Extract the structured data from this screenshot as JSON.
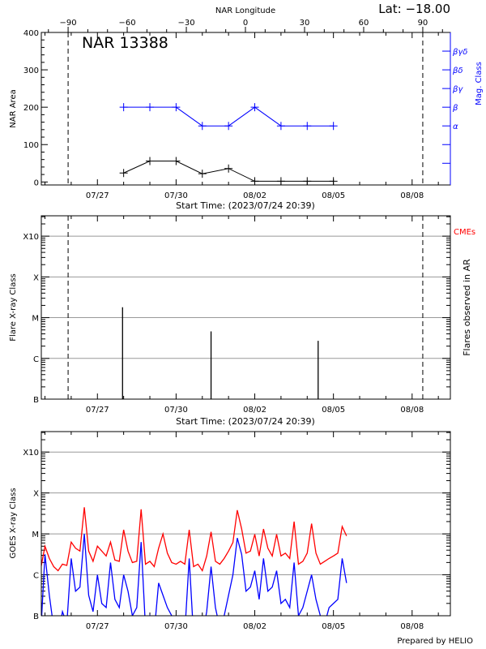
{
  "header": {
    "latitude": "Lat: −18.00",
    "credit": "Prepared by HELIO"
  },
  "colors": {
    "axis": "#000000",
    "mag_class": "#0000ff",
    "goes_long": "#ff0000",
    "goes_short": "#0000ff",
    "cme": "#ff0000",
    "grid": "#999999"
  },
  "chart_data": [
    {
      "type": "line",
      "title": "NAR 13388",
      "xlabel": "Start Time: (2023/07/24 20:39)",
      "ylabel": "NAR Area",
      "y2label": "Mag. Class",
      "top_xlabel": "NAR Longitude",
      "xlim": [
        "2023/07/24 20:39",
        "2023/08/09 11:00"
      ],
      "top_xlim": [
        -103.6,
        104
      ],
      "top_ticks": [
        -90,
        -60,
        -30,
        0,
        30,
        60,
        90
      ],
      "ylim": [
        -8,
        400
      ],
      "yticks": [
        0,
        100,
        200,
        300,
        400
      ],
      "xticks": [
        "07/27",
        "07/30",
        "08/02",
        "08/05",
        "08/08"
      ],
      "limb_longitudes": [
        -90,
        90
      ],
      "mag_class_axis": [
        {
          "label": "α",
          "value": 150
        },
        {
          "label": "β",
          "value": 200
        },
        {
          "label": "βγ",
          "value": 250
        },
        {
          "label": "βδ",
          "value": 300
        },
        {
          "label": "βγδ",
          "value": 350
        }
      ],
      "dates": [
        "07/28",
        "07/29",
        "07/30",
        "07/31",
        "08/01",
        "08/02",
        "08/03",
        "08/04",
        "08/05"
      ],
      "area": [
        24,
        56,
        56,
        22,
        36,
        2,
        2,
        2,
        2
      ],
      "mag_class": [
        "β",
        "β",
        "β",
        "α",
        "α",
        "β",
        "α",
        "α",
        "α"
      ]
    },
    {
      "type": "bar",
      "xlabel": "Start Time: (2023/07/24 20:39)",
      "ylabel": "Flare X-ray Class",
      "y2label": "Flares observed in AR",
      "cme_label": "CMEs",
      "scale": "log",
      "ylim": [
        -7,
        -2.5
      ],
      "yticks": [
        {
          "label": "B",
          "value": -7
        },
        {
          "label": "C",
          "value": -6
        },
        {
          "label": "M",
          "value": -5
        },
        {
          "label": "X",
          "value": -4
        },
        {
          "label": "X10",
          "value": -3
        }
      ],
      "grid": true,
      "xticks": [
        "07/27",
        "07/30",
        "08/02",
        "08/05",
        "08/08"
      ],
      "limb_longitudes": [
        -90,
        90
      ],
      "flares": [
        {
          "time": "07/27 23:00",
          "class": "M1.8"
        },
        {
          "time": "07/31 08:00",
          "class": "C4.6"
        },
        {
          "time": "08/04 10:00",
          "class": "C2.7"
        }
      ]
    },
    {
      "type": "line",
      "ylabel": "GOES X-ray Class",
      "scale": "log",
      "ylim": [
        -7,
        -2.5
      ],
      "yticks": [
        {
          "label": "B",
          "value": -7
        },
        {
          "label": "C",
          "value": -6
        },
        {
          "label": "M",
          "value": -5
        },
        {
          "label": "X",
          "value": -4
        },
        {
          "label": "X10",
          "value": -3
        }
      ],
      "grid": true,
      "xticks": [
        "07/27",
        "07/30",
        "08/02",
        "08/05",
        "08/08"
      ],
      "times": [
        "07/24 20:00",
        "07/25 00:00",
        "07/25 04:00",
        "07/25 08:00",
        "07/25 12:00",
        "07/25 16:00",
        "07/25 20:00",
        "07/26 00:00",
        "07/26 04:00",
        "07/26 08:00",
        "07/26 12:00",
        "07/26 16:00",
        "07/26 20:00",
        "07/27 00:00",
        "07/27 04:00",
        "07/27 08:00",
        "07/27 12:00",
        "07/27 16:00",
        "07/27 20:00",
        "07/28 00:00",
        "07/28 04:00",
        "07/28 08:00",
        "07/28 12:00",
        "07/28 16:00",
        "07/28 20:00",
        "07/29 00:00",
        "07/29 04:00",
        "07/29 08:00",
        "07/29 12:00",
        "07/29 16:00",
        "07/29 20:00",
        "07/30 00:00",
        "07/30 04:00",
        "07/30 08:00",
        "07/30 12:00",
        "07/30 16:00",
        "07/30 20:00",
        "07/31 00:00",
        "07/31 04:00",
        "07/31 08:00",
        "07/31 12:00",
        "07/31 16:00",
        "07/31 20:00",
        "08/01 00:00",
        "08/01 04:00",
        "08/01 08:00",
        "08/01 12:00",
        "08/01 16:00",
        "08/01 20:00",
        "08/02 00:00",
        "08/02 04:00",
        "08/02 08:00",
        "08/02 12:00",
        "08/02 16:00",
        "08/02 20:00",
        "08/03 00:00",
        "08/03 04:00",
        "08/03 08:00",
        "08/03 12:00",
        "08/03 16:00",
        "08/03 20:00",
        "08/04 00:00",
        "08/04 04:00",
        "08/04 08:00",
        "08/04 12:00",
        "08/04 16:00",
        "08/04 20:00",
        "08/05 00:00",
        "08/05 04:00",
        "08/05 08:00",
        "08/05 12:00"
      ],
      "series": [
        {
          "values": [
            -5.87,
            -5.3,
            -5.6,
            -5.8,
            -5.9,
            -5.74,
            -5.77,
            -5.2,
            -5.35,
            -5.42,
            -4.35,
            -5.42,
            -5.67,
            -5.3,
            -5.42,
            -5.54,
            -5.2,
            -5.64,
            -5.67,
            -4.9,
            -5.42,
            -5.7,
            -5.67,
            -4.4,
            -5.74,
            -5.67,
            -5.8,
            -5.35,
            -5.0,
            -5.47,
            -5.7,
            -5.74,
            -5.67,
            -5.74,
            -4.9,
            -5.8,
            -5.74,
            -5.9,
            -5.54,
            -4.95,
            -5.67,
            -5.74,
            -5.6,
            -5.42,
            -5.21,
            -4.42,
            -4.88,
            -5.47,
            -5.42,
            -5.01,
            -5.54,
            -4.88,
            -5.35,
            -5.54,
            -5.01,
            -5.54,
            -5.47,
            -5.6,
            -4.7,
            -5.74,
            -5.67,
            -5.47,
            -4.75,
            -5.47,
            -5.74,
            -5.67,
            -5.6,
            -5.54,
            -5.47,
            -4.82,
            -5.05
          ]
        },
        {
          "values": [
            -7.5,
            -5.5,
            -6.5,
            -7.3,
            -7.5,
            -6.9,
            -7.2,
            -5.6,
            -6.4,
            -6.3,
            -5.0,
            -6.5,
            -6.9,
            -6.0,
            -6.7,
            -6.8,
            -5.7,
            -6.6,
            -6.8,
            -6.0,
            -6.4,
            -7.0,
            -6.8,
            -5.2,
            -7.3,
            -7.0,
            -7.4,
            -6.2,
            -6.5,
            -6.8,
            -7.0,
            -7.3,
            -7.2,
            -7.4,
            -5.6,
            -7.5,
            -7.5,
            -7.5,
            -6.9,
            -5.8,
            -6.8,
            -7.3,
            -7.0,
            -6.5,
            -6.0,
            -5.1,
            -5.5,
            -6.4,
            -6.3,
            -5.9,
            -6.6,
            -5.6,
            -6.4,
            -6.3,
            -5.9,
            -6.7,
            -6.6,
            -6.8,
            -5.7,
            -7.0,
            -6.8,
            -6.4,
            -6.0,
            -6.6,
            -7.0,
            -7.2,
            -6.8,
            -6.7,
            -6.6,
            -5.6,
            -6.2
          ]
        }
      ]
    }
  ]
}
